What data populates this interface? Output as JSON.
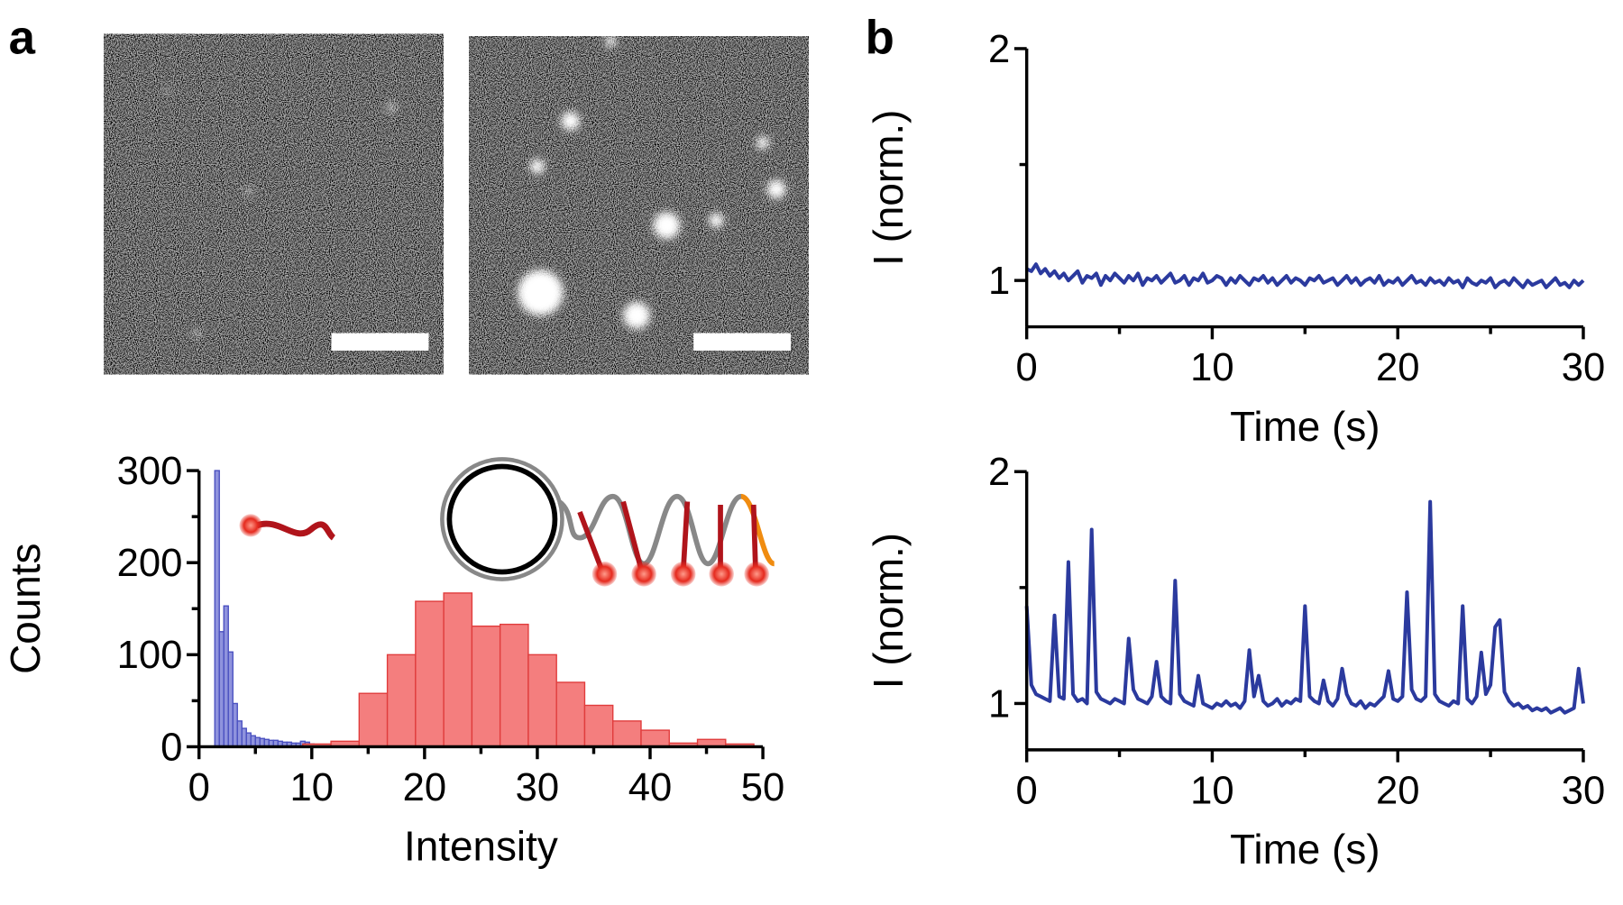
{
  "panel_labels": [
    "a",
    "b"
  ],
  "chart_data": [
    {
      "type": "histogram",
      "xlabel": "Intensity",
      "ylabel": "Counts",
      "xlim": [
        0,
        50
      ],
      "xticks": [
        0,
        10,
        20,
        30,
        40,
        50
      ],
      "xminorticks": [
        5,
        15,
        25,
        35,
        45
      ],
      "ylim": [
        0,
        300
      ],
      "yticks": [
        0,
        100,
        200,
        300
      ],
      "yminorticks": [
        50,
        150,
        250
      ],
      "series": [
        {
          "color": "#4a50c0",
          "fill": "#8f93dd",
          "bins": [
            1.4,
            1.8,
            2.2,
            2.6,
            3.0,
            3.4,
            3.8,
            4.2,
            4.6,
            5.0,
            5.4,
            5.8,
            6.2,
            6.6,
            7.0,
            7.4,
            7.8,
            8.2,
            8.6,
            9.0,
            9.4,
            9.8,
            10.2
          ],
          "values": [
            300,
            125,
            153,
            103,
            47,
            28,
            20,
            15,
            12,
            10,
            9,
            8,
            7,
            7,
            6,
            5,
            5,
            4,
            4,
            6,
            5,
            3
          ]
        },
        {
          "color": "#e03c3c",
          "fill": "#f47e7e",
          "bins": [
            9.2,
            11.7,
            14.2,
            16.7,
            19.2,
            21.7,
            24.2,
            26.7,
            29.2,
            31.7,
            34.2,
            36.7,
            39.2,
            41.7,
            44.2,
            46.7,
            49.2
          ],
          "values": [
            3,
            6,
            58,
            100,
            158,
            167,
            131,
            133,
            100,
            70,
            45,
            28,
            18,
            4,
            8,
            3
          ]
        }
      ]
    },
    {
      "type": "line",
      "xlabel": "Time (s)",
      "ylabel": "I (norm.)",
      "color": "#2b3a9e",
      "xlim": [
        0,
        30
      ],
      "xticks": [
        0,
        10,
        20,
        30
      ],
      "xminorticks": [
        5,
        15,
        25
      ],
      "ylim": [
        0.8,
        2
      ],
      "yticks": [
        1,
        2
      ],
      "yminorticks": [
        1.5
      ],
      "x": [
        0,
        0.25,
        0.5,
        0.75,
        1,
        1.25,
        1.5,
        1.75,
        2,
        2.25,
        2.5,
        2.75,
        3,
        3.25,
        3.5,
        3.75,
        4,
        4.25,
        4.5,
        4.75,
        5,
        5.25,
        5.5,
        5.75,
        6,
        6.25,
        6.5,
        6.75,
        7,
        7.25,
        7.5,
        7.75,
        8,
        8.25,
        8.5,
        8.75,
        9,
        9.25,
        9.5,
        9.75,
        10,
        10.25,
        10.5,
        10.75,
        11,
        11.25,
        11.5,
        11.75,
        12,
        12.25,
        12.5,
        12.75,
        13,
        13.25,
        13.5,
        13.75,
        14,
        14.25,
        14.5,
        14.75,
        15,
        15.25,
        15.5,
        15.75,
        16,
        16.25,
        16.5,
        16.75,
        17,
        17.25,
        17.5,
        17.75,
        18,
        18.25,
        18.5,
        18.75,
        19,
        19.25,
        19.5,
        19.75,
        20,
        20.25,
        20.5,
        20.75,
        21,
        21.25,
        21.5,
        21.75,
        22,
        22.25,
        22.5,
        22.75,
        23,
        23.25,
        23.5,
        23.75,
        24,
        24.25,
        24.5,
        24.75,
        25,
        25.25,
        25.5,
        25.75,
        26,
        26.25,
        26.5,
        26.75,
        27,
        27.25,
        27.5,
        27.75,
        28,
        28.25,
        28.5,
        28.75,
        29,
        29.25,
        29.5,
        29.75,
        30
      ],
      "values": [
        1.05,
        1.04,
        1.07,
        1.03,
        1.05,
        1.02,
        1.04,
        1.01,
        1.03,
        1.0,
        1.02,
        1.04,
        0.99,
        1.02,
        1.01,
        1.03,
        0.98,
        1.02,
        1.0,
        1.03,
        1.01,
        0.99,
        1.02,
        1.0,
        1.03,
        0.98,
        1.01,
        1.0,
        1.02,
        0.99,
        1.01,
        1.03,
        0.99,
        1.0,
        1.02,
        0.98,
        1.01,
        1.0,
        1.03,
        0.99,
        1.0,
        1.02,
        1.01,
        0.98,
        1.01,
        0.99,
        1.02,
        1.0,
        0.98,
        1.01,
        1.0,
        1.02,
        0.99,
        1.01,
        0.98,
        1.0,
        1.02,
        0.99,
        1.01,
        1.0,
        0.98,
        1.01,
        1.0,
        1.02,
        0.99,
        1.0,
        1.01,
        0.98,
        1.0,
        1.02,
        0.99,
        1.01,
        0.98,
        1.0,
        1.01,
        0.99,
        1.02,
        0.98,
        1.0,
        0.99,
        1.01,
        0.98,
        1.0,
        1.02,
        0.99,
        1.0,
        0.98,
        1.01,
        0.99,
        1.0,
        0.98,
        1.01,
        0.99,
        1.0,
        0.97,
        1.01,
        0.99,
        0.98,
        1.0,
        0.99,
        1.01,
        0.97,
        0.99,
        1.0,
        0.98,
        1.01,
        0.99,
        0.97,
        1.0,
        0.98,
        0.99,
        1.0,
        0.97,
        0.99,
        1.01,
        0.98,
        0.99,
        0.97,
        1.0,
        0.98,
        1.0
      ]
    },
    {
      "type": "line",
      "xlabel": "Time (s)",
      "ylabel": "I (norm.)",
      "color": "#2b3a9e",
      "xlim": [
        0,
        30
      ],
      "xticks": [
        0,
        10,
        20,
        30
      ],
      "xminorticks": [
        5,
        15,
        25
      ],
      "ylim": [
        0.8,
        2
      ],
      "yticks": [
        1,
        2
      ],
      "yminorticks": [
        1.5
      ],
      "x": [
        0,
        0.25,
        0.5,
        0.75,
        1,
        1.25,
        1.5,
        1.75,
        2,
        2.25,
        2.5,
        2.75,
        3,
        3.25,
        3.5,
        3.75,
        4,
        4.25,
        4.5,
        4.75,
        5,
        5.25,
        5.5,
        5.75,
        6,
        6.25,
        6.5,
        6.75,
        7,
        7.25,
        7.5,
        7.75,
        8,
        8.25,
        8.5,
        8.75,
        9,
        9.25,
        9.5,
        9.75,
        10,
        10.25,
        10.5,
        10.75,
        11,
        11.25,
        11.5,
        11.75,
        12,
        12.25,
        12.5,
        12.75,
        13,
        13.25,
        13.5,
        13.75,
        14,
        14.25,
        14.5,
        14.75,
        15,
        15.25,
        15.5,
        15.75,
        16,
        16.25,
        16.5,
        16.75,
        17,
        17.25,
        17.5,
        17.75,
        18,
        18.25,
        18.5,
        18.75,
        19,
        19.25,
        19.5,
        19.75,
        20,
        20.25,
        20.5,
        20.75,
        21,
        21.25,
        21.5,
        21.75,
        22,
        22.25,
        22.5,
        22.75,
        23,
        23.25,
        23.5,
        23.75,
        24,
        24.25,
        24.5,
        24.75,
        25,
        25.25,
        25.5,
        25.75,
        26,
        26.25,
        26.5,
        26.75,
        27,
        27.25,
        27.5,
        27.75,
        28,
        28.25,
        28.5,
        28.75,
        29,
        29.25,
        29.5,
        29.75,
        30
      ],
      "values": [
        1.42,
        1.08,
        1.04,
        1.03,
        1.02,
        1.01,
        1.38,
        1.03,
        1.02,
        1.61,
        1.04,
        1.01,
        1.02,
        1.0,
        1.75,
        1.05,
        1.02,
        1.01,
        1.0,
        1.02,
        1.01,
        1.0,
        1.28,
        1.06,
        1.02,
        1.01,
        1.0,
        1.03,
        1.18,
        1.03,
        1.01,
        1.0,
        1.53,
        1.04,
        1.01,
        1.0,
        0.99,
        1.12,
        1.0,
        0.99,
        0.98,
        1.0,
        0.99,
        1.01,
        0.99,
        1.0,
        0.98,
        1.01,
        1.23,
        1.03,
        1.12,
        1.01,
        0.99,
        1.0,
        1.02,
        0.99,
        1.01,
        1.0,
        1.02,
        1.01,
        1.42,
        1.03,
        1.01,
        1.0,
        1.1,
        1.01,
        0.99,
        1.02,
        1.15,
        1.04,
        1.0,
        0.99,
        1.01,
        0.98,
        1.0,
        0.99,
        1.01,
        1.03,
        1.14,
        1.02,
        1.01,
        1.03,
        1.48,
        1.06,
        1.02,
        1.01,
        1.03,
        1.87,
        1.04,
        1.01,
        1.0,
        0.99,
        1.01,
        1.0,
        1.42,
        1.02,
        1.0,
        1.03,
        1.22,
        1.04,
        1.08,
        1.33,
        1.36,
        1.05,
        1.01,
        0.99,
        1.0,
        0.98,
        0.99,
        0.97,
        0.98,
        0.97,
        0.98,
        0.96,
        0.97,
        0.98,
        0.96,
        0.97,
        0.98,
        1.15,
        1.0
      ]
    }
  ]
}
